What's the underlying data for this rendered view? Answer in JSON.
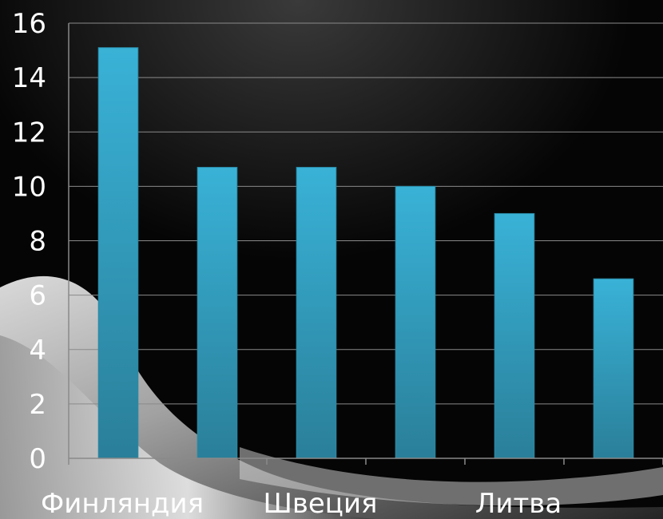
{
  "chart_data": {
    "type": "bar",
    "categories": [
      "Финляндия",
      "",
      "Швеция",
      "",
      "Литва",
      ""
    ],
    "values": [
      15.1,
      10.7,
      10.7,
      10.0,
      9.0,
      6.6
    ],
    "ylim": [
      0,
      16
    ],
    "yticks": [
      "0",
      "2",
      "4",
      "6",
      "8",
      "10",
      "12",
      "14",
      "16"
    ],
    "grid": true,
    "legend": "none",
    "colors": {
      "bar_top": "#39b2d7",
      "bar_bottom": "#2a7f99",
      "plot_bg": "#ffffff",
      "grid": "#8a8a8a",
      "text": "#ffffff"
    }
  }
}
